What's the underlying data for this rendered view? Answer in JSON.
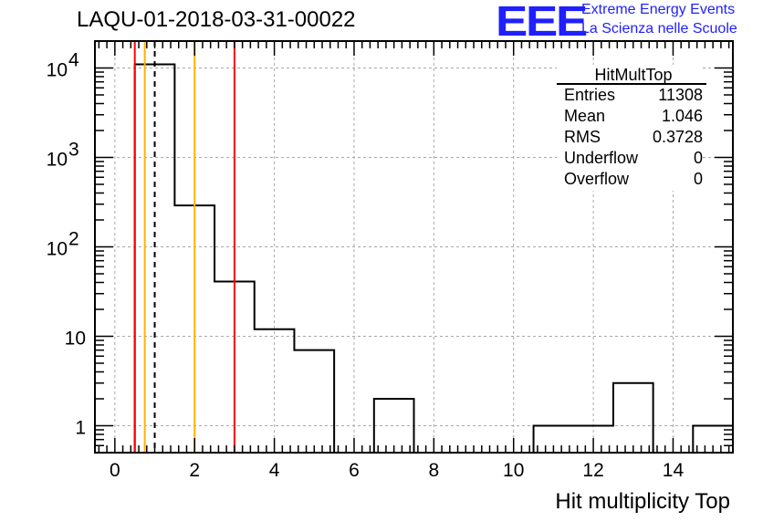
{
  "title": "LAQU-01-2018-03-31-00022",
  "logo": {
    "text": "EEE",
    "line1": "Extreme Energy Events",
    "line2": "La Scienza nelle Scuole",
    "color": "#1f1fff"
  },
  "stats": {
    "name": "HitMultTop",
    "rows": [
      {
        "label": "Entries",
        "value": "11308"
      },
      {
        "label": "Mean",
        "value": "1.046"
      },
      {
        "label": "RMS",
        "value": "0.3728"
      },
      {
        "label": "Underflow",
        "value": "0"
      },
      {
        "label": "Overflow",
        "value": "0"
      }
    ]
  },
  "chart_data": {
    "type": "histogram",
    "title": "LAQU-01-2018-03-31-00022",
    "xlabel": "Hit multiplicity Top",
    "ylabel": "",
    "yscale": "log",
    "xlim": [
      -0.5,
      15.5
    ],
    "ylim": [
      0.5,
      20000
    ],
    "grid": true,
    "bin_edges": [
      -0.5,
      0.5,
      1.5,
      2.5,
      3.5,
      4.5,
      5.5,
      6.5,
      7.5,
      8.5,
      9.5,
      10.5,
      11.5,
      12.5,
      13.5,
      14.5,
      15.5
    ],
    "counts": [
      0,
      11000,
      290,
      41,
      12,
      7,
      0,
      2,
      0,
      0,
      0,
      1,
      1,
      3,
      0,
      1
    ],
    "x_ticks": [
      0,
      2,
      4,
      6,
      8,
      10,
      12,
      14
    ],
    "y_ticks": [
      {
        "value": 1,
        "base": "1",
        "exp": ""
      },
      {
        "value": 10,
        "base": "10",
        "exp": ""
      },
      {
        "value": 100,
        "base": "10",
        "exp": "2"
      },
      {
        "value": 1000,
        "base": "10",
        "exp": "3"
      },
      {
        "value": 10000,
        "base": "10",
        "exp": "4"
      }
    ],
    "vertical_lines": [
      {
        "x": 0.5,
        "color": "#ff0000",
        "style": "solid"
      },
      {
        "x": 0.75,
        "color": "#ffb300",
        "style": "solid"
      },
      {
        "x": 1.0,
        "color": "#000000",
        "style": "dashed"
      },
      {
        "x": 2.0,
        "color": "#ffb300",
        "style": "solid"
      },
      {
        "x": 3.0,
        "color": "#ff0000",
        "style": "solid"
      }
    ]
  }
}
